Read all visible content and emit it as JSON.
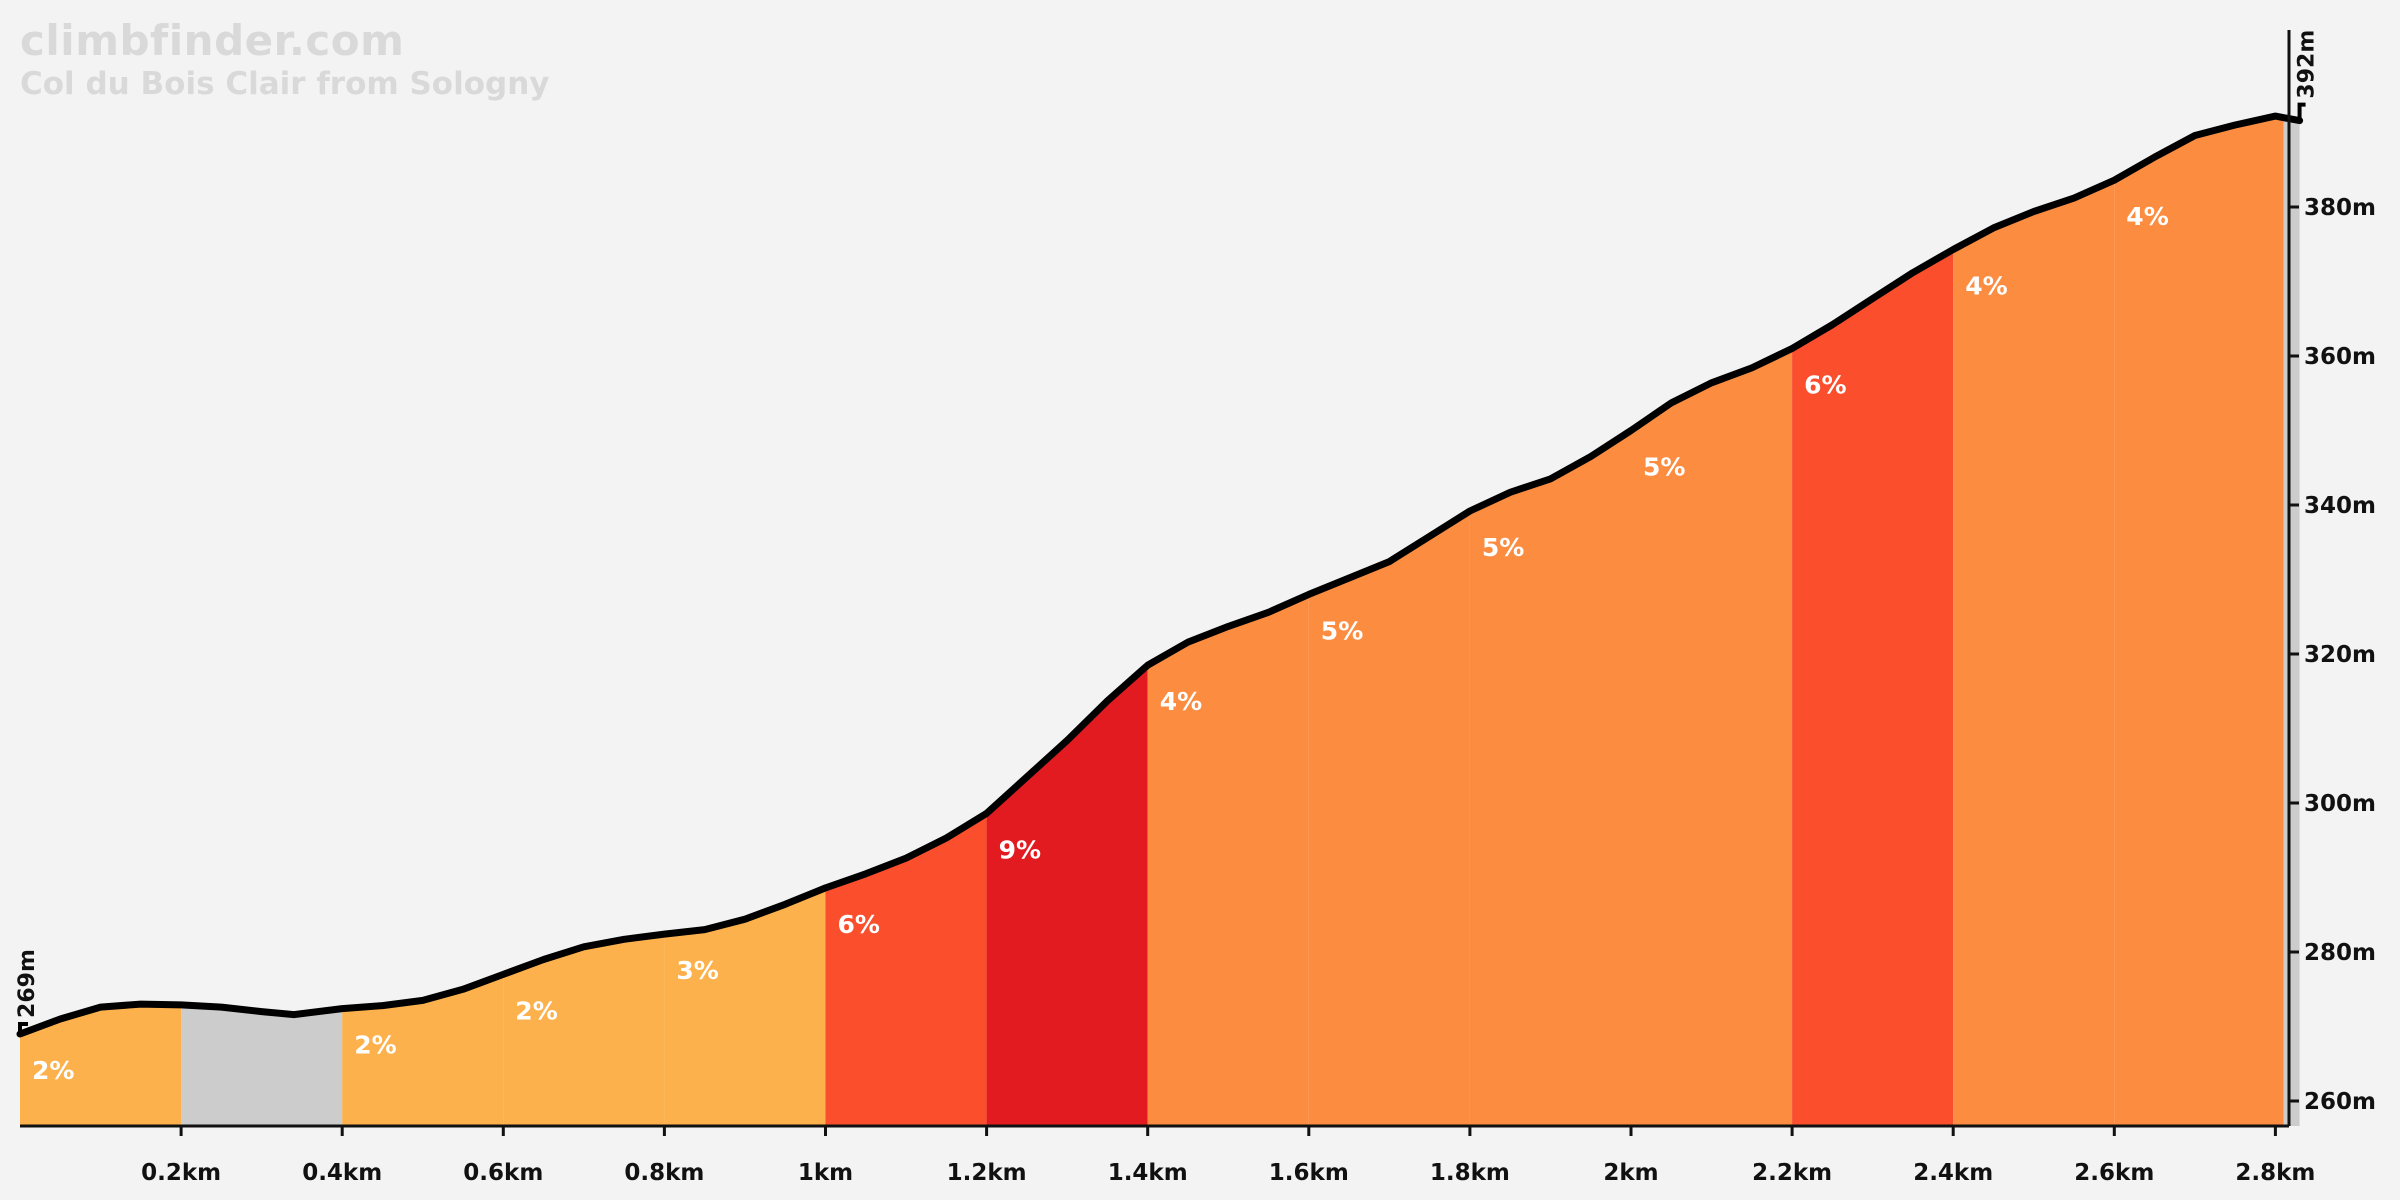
{
  "site": "climbfinder.com",
  "climb_name": "Col du Bois Clair from Sologny",
  "colors": {
    "background": "#f3f3f3",
    "profile_line": "#000000",
    "flat": "#cccccc",
    "grade_1_3": "#fdb14c",
    "grade_4_5": "#fc8c40",
    "grade_6": "#fb4e2d",
    "grade_9": "#e11b1f"
  },
  "chart_data": {
    "type": "area",
    "xlabel": "",
    "ylabel": "",
    "x_unit": "km",
    "y_unit": "m",
    "xlim": [
      0,
      2.83
    ],
    "ylim": [
      257,
      394
    ],
    "start_altitude_label": "269m",
    "end_altitude_label": "392m",
    "x_ticks": [
      {
        "value": 0.2,
        "label": "0.2km"
      },
      {
        "value": 0.4,
        "label": "0.4km"
      },
      {
        "value": 0.6,
        "label": "0.6km"
      },
      {
        "value": 0.8,
        "label": "0.8km"
      },
      {
        "value": 1.0,
        "label": "1km"
      },
      {
        "value": 1.2,
        "label": "1.2km"
      },
      {
        "value": 1.4,
        "label": "1.4km"
      },
      {
        "value": 1.6,
        "label": "1.6km"
      },
      {
        "value": 1.8,
        "label": "1.8km"
      },
      {
        "value": 2.0,
        "label": "2km"
      },
      {
        "value": 2.2,
        "label": "2.2km"
      },
      {
        "value": 2.4,
        "label": "2.4km"
      },
      {
        "value": 2.6,
        "label": "2.6km"
      },
      {
        "value": 2.8,
        "label": "2.8km"
      }
    ],
    "y_ticks": [
      {
        "value": 260,
        "label": "260m"
      },
      {
        "value": 280,
        "label": "280m"
      },
      {
        "value": 300,
        "label": "300m"
      },
      {
        "value": 320,
        "label": "320m"
      },
      {
        "value": 340,
        "label": "340m"
      },
      {
        "value": 360,
        "label": "360m"
      },
      {
        "value": 380,
        "label": "380m"
      }
    ],
    "profile": [
      [
        0.0,
        269.0
      ],
      [
        0.05,
        271.0
      ],
      [
        0.1,
        272.6
      ],
      [
        0.15,
        273.0
      ],
      [
        0.2,
        272.9
      ],
      [
        0.25,
        272.6
      ],
      [
        0.3,
        272.0
      ],
      [
        0.34,
        271.6
      ],
      [
        0.4,
        272.4
      ],
      [
        0.45,
        272.8
      ],
      [
        0.5,
        273.5
      ],
      [
        0.55,
        275.0
      ],
      [
        0.6,
        277.0
      ],
      [
        0.65,
        279.0
      ],
      [
        0.7,
        280.7
      ],
      [
        0.75,
        281.7
      ],
      [
        0.8,
        282.4
      ],
      [
        0.85,
        283.0
      ],
      [
        0.9,
        284.4
      ],
      [
        0.95,
        286.4
      ],
      [
        1.0,
        288.6
      ],
      [
        1.05,
        290.5
      ],
      [
        1.1,
        292.6
      ],
      [
        1.15,
        295.3
      ],
      [
        1.2,
        298.6
      ],
      [
        1.25,
        303.5
      ],
      [
        1.3,
        308.4
      ],
      [
        1.35,
        313.7
      ],
      [
        1.4,
        318.5
      ],
      [
        1.45,
        321.6
      ],
      [
        1.5,
        323.7
      ],
      [
        1.55,
        325.6
      ],
      [
        1.6,
        328.0
      ],
      [
        1.65,
        330.2
      ],
      [
        1.7,
        332.4
      ],
      [
        1.75,
        335.8
      ],
      [
        1.8,
        339.2
      ],
      [
        1.85,
        341.7
      ],
      [
        1.9,
        343.5
      ],
      [
        1.95,
        346.5
      ],
      [
        2.0,
        350.0
      ],
      [
        2.05,
        353.7
      ],
      [
        2.1,
        356.4
      ],
      [
        2.15,
        358.4
      ],
      [
        2.2,
        361.0
      ],
      [
        2.25,
        364.2
      ],
      [
        2.3,
        367.7
      ],
      [
        2.35,
        371.2
      ],
      [
        2.4,
        374.3
      ],
      [
        2.45,
        377.2
      ],
      [
        2.5,
        379.4
      ],
      [
        2.55,
        381.2
      ],
      [
        2.6,
        383.6
      ],
      [
        2.65,
        386.7
      ],
      [
        2.7,
        389.6
      ],
      [
        2.75,
        391.0
      ],
      [
        2.8,
        392.2
      ],
      [
        2.83,
        391.6
      ]
    ],
    "segments": [
      {
        "start": 0.0,
        "end": 0.2,
        "grade_label": "2%",
        "color": "#fdb14c"
      },
      {
        "start": 0.2,
        "end": 0.4,
        "grade_label": "",
        "color": "#cccccc"
      },
      {
        "start": 0.4,
        "end": 0.6,
        "grade_label": "2%",
        "color": "#fdb14c"
      },
      {
        "start": 0.6,
        "end": 0.8,
        "grade_label": "2%",
        "color": "#fdb14c"
      },
      {
        "start": 0.8,
        "end": 1.0,
        "grade_label": "3%",
        "color": "#fdb14c"
      },
      {
        "start": 1.0,
        "end": 1.2,
        "grade_label": "6%",
        "color": "#fb4e2d"
      },
      {
        "start": 1.2,
        "end": 1.4,
        "grade_label": "9%",
        "color": "#e11b1f"
      },
      {
        "start": 1.4,
        "end": 1.6,
        "grade_label": "4%",
        "color": "#fc8c40"
      },
      {
        "start": 1.6,
        "end": 1.8,
        "grade_label": "5%",
        "color": "#fc8c40"
      },
      {
        "start": 1.8,
        "end": 2.0,
        "grade_label": "5%",
        "color": "#fc8c40"
      },
      {
        "start": 2.0,
        "end": 2.2,
        "grade_label": "5%",
        "color": "#fc8c40"
      },
      {
        "start": 2.2,
        "end": 2.4,
        "grade_label": "6%",
        "color": "#fb4e2d"
      },
      {
        "start": 2.4,
        "end": 2.6,
        "grade_label": "4%",
        "color": "#fc8c40"
      },
      {
        "start": 2.6,
        "end": 2.81,
        "grade_label": "4%",
        "color": "#fc8c40"
      },
      {
        "start": 2.81,
        "end": 2.83,
        "grade_label": "",
        "color": "#cccccc"
      }
    ]
  }
}
